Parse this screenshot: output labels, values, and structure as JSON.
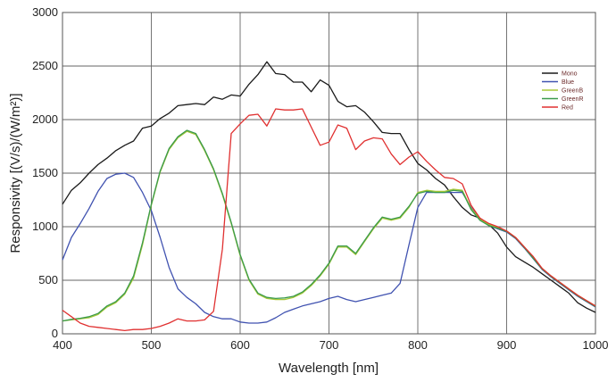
{
  "chart_data": {
    "type": "line",
    "xlabel": "Wavelength [nm]",
    "ylabel": "Responsivity [(V/s)/(W/m²)]",
    "xlim": [
      400,
      1000
    ],
    "ylim": [
      0,
      3000
    ],
    "x_ticks": [
      400,
      500,
      600,
      700,
      800,
      900,
      1000
    ],
    "y_ticks": [
      0,
      500,
      1000,
      1500,
      2000,
      2500,
      3000
    ],
    "grid": true,
    "legend_position": "top-right",
    "series": [
      {
        "name": "Mono",
        "color": "#1a1a1a",
        "points": [
          [
            400,
            1210
          ],
          [
            410,
            1340
          ],
          [
            420,
            1410
          ],
          [
            430,
            1500
          ],
          [
            440,
            1580
          ],
          [
            450,
            1640
          ],
          [
            460,
            1710
          ],
          [
            470,
            1760
          ],
          [
            480,
            1800
          ],
          [
            490,
            1920
          ],
          [
            500,
            1940
          ],
          [
            510,
            2010
          ],
          [
            520,
            2060
          ],
          [
            530,
            2130
          ],
          [
            540,
            2140
          ],
          [
            550,
            2150
          ],
          [
            560,
            2140
          ],
          [
            570,
            2210
          ],
          [
            580,
            2190
          ],
          [
            590,
            2230
          ],
          [
            600,
            2220
          ],
          [
            610,
            2330
          ],
          [
            620,
            2420
          ],
          [
            630,
            2540
          ],
          [
            640,
            2430
          ],
          [
            650,
            2420
          ],
          [
            660,
            2350
          ],
          [
            670,
            2350
          ],
          [
            680,
            2260
          ],
          [
            690,
            2370
          ],
          [
            700,
            2320
          ],
          [
            710,
            2170
          ],
          [
            720,
            2120
          ],
          [
            730,
            2130
          ],
          [
            740,
            2070
          ],
          [
            750,
            1980
          ],
          [
            760,
            1880
          ],
          [
            770,
            1870
          ],
          [
            780,
            1870
          ],
          [
            790,
            1720
          ],
          [
            800,
            1590
          ],
          [
            810,
            1530
          ],
          [
            820,
            1450
          ],
          [
            830,
            1390
          ],
          [
            840,
            1280
          ],
          [
            850,
            1180
          ],
          [
            860,
            1110
          ],
          [
            870,
            1080
          ],
          [
            880,
            1020
          ],
          [
            890,
            940
          ],
          [
            900,
            810
          ],
          [
            910,
            720
          ],
          [
            920,
            670
          ],
          [
            930,
            620
          ],
          [
            940,
            560
          ],
          [
            950,
            500
          ],
          [
            960,
            440
          ],
          [
            970,
            380
          ],
          [
            980,
            290
          ],
          [
            990,
            240
          ],
          [
            1000,
            200
          ]
        ]
      },
      {
        "name": "Blue",
        "color": "#4052b0",
        "points": [
          [
            400,
            690
          ],
          [
            410,
            900
          ],
          [
            420,
            1030
          ],
          [
            430,
            1170
          ],
          [
            440,
            1330
          ],
          [
            450,
            1450
          ],
          [
            460,
            1490
          ],
          [
            470,
            1500
          ],
          [
            480,
            1460
          ],
          [
            490,
            1320
          ],
          [
            500,
            1150
          ],
          [
            510,
            900
          ],
          [
            520,
            620
          ],
          [
            530,
            420
          ],
          [
            540,
            340
          ],
          [
            550,
            280
          ],
          [
            560,
            200
          ],
          [
            570,
            160
          ],
          [
            580,
            140
          ],
          [
            590,
            140
          ],
          [
            600,
            110
          ],
          [
            610,
            100
          ],
          [
            620,
            100
          ],
          [
            630,
            110
          ],
          [
            640,
            150
          ],
          [
            650,
            200
          ],
          [
            660,
            230
          ],
          [
            670,
            260
          ],
          [
            680,
            280
          ],
          [
            690,
            300
          ],
          [
            700,
            330
          ],
          [
            710,
            350
          ],
          [
            720,
            320
          ],
          [
            730,
            300
          ],
          [
            740,
            320
          ],
          [
            750,
            340
          ],
          [
            760,
            360
          ],
          [
            770,
            380
          ],
          [
            780,
            470
          ],
          [
            790,
            830
          ],
          [
            800,
            1180
          ],
          [
            810,
            1320
          ],
          [
            820,
            1320
          ],
          [
            830,
            1320
          ],
          [
            840,
            1320
          ],
          [
            850,
            1320
          ],
          [
            860,
            1180
          ],
          [
            870,
            1070
          ],
          [
            880,
            1010
          ],
          [
            890,
            980
          ],
          [
            900,
            950
          ],
          [
            910,
            890
          ],
          [
            920,
            800
          ],
          [
            930,
            700
          ],
          [
            940,
            600
          ],
          [
            950,
            530
          ],
          [
            960,
            470
          ],
          [
            970,
            410
          ],
          [
            980,
            350
          ],
          [
            990,
            300
          ],
          [
            1000,
            250
          ]
        ]
      },
      {
        "name": "GreenB",
        "color": "#a8c838",
        "points": [
          [
            400,
            120
          ],
          [
            410,
            130
          ],
          [
            420,
            140
          ],
          [
            430,
            150
          ],
          [
            440,
            180
          ],
          [
            450,
            250
          ],
          [
            460,
            290
          ],
          [
            470,
            370
          ],
          [
            480,
            520
          ],
          [
            490,
            830
          ],
          [
            500,
            1200
          ],
          [
            510,
            1510
          ],
          [
            520,
            1720
          ],
          [
            530,
            1830
          ],
          [
            540,
            1890
          ],
          [
            550,
            1860
          ],
          [
            560,
            1710
          ],
          [
            570,
            1530
          ],
          [
            580,
            1300
          ],
          [
            590,
            1030
          ],
          [
            600,
            730
          ],
          [
            610,
            500
          ],
          [
            620,
            370
          ],
          [
            630,
            330
          ],
          [
            640,
            320
          ],
          [
            650,
            320
          ],
          [
            660,
            340
          ],
          [
            670,
            380
          ],
          [
            680,
            450
          ],
          [
            690,
            540
          ],
          [
            700,
            650
          ],
          [
            710,
            810
          ],
          [
            720,
            810
          ],
          [
            730,
            740
          ],
          [
            740,
            860
          ],
          [
            750,
            980
          ],
          [
            760,
            1080
          ],
          [
            770,
            1060
          ],
          [
            780,
            1080
          ],
          [
            790,
            1180
          ],
          [
            800,
            1320
          ],
          [
            810,
            1340
          ],
          [
            820,
            1330
          ],
          [
            830,
            1330
          ],
          [
            840,
            1350
          ],
          [
            850,
            1340
          ],
          [
            860,
            1170
          ],
          [
            870,
            1070
          ],
          [
            880,
            1020
          ],
          [
            890,
            990
          ],
          [
            900,
            960
          ],
          [
            910,
            900
          ],
          [
            920,
            810
          ],
          [
            930,
            710
          ],
          [
            940,
            610
          ],
          [
            950,
            540
          ],
          [
            960,
            480
          ],
          [
            970,
            420
          ],
          [
            980,
            360
          ],
          [
            990,
            310
          ],
          [
            1000,
            260
          ]
        ]
      },
      {
        "name": "GreenR",
        "color": "#3a9a4a",
        "points": [
          [
            400,
            120
          ],
          [
            410,
            135
          ],
          [
            420,
            145
          ],
          [
            430,
            160
          ],
          [
            440,
            190
          ],
          [
            450,
            260
          ],
          [
            460,
            300
          ],
          [
            470,
            380
          ],
          [
            480,
            540
          ],
          [
            490,
            850
          ],
          [
            500,
            1210
          ],
          [
            510,
            1520
          ],
          [
            520,
            1730
          ],
          [
            530,
            1840
          ],
          [
            540,
            1900
          ],
          [
            550,
            1870
          ],
          [
            560,
            1720
          ],
          [
            570,
            1540
          ],
          [
            580,
            1310
          ],
          [
            590,
            1040
          ],
          [
            600,
            740
          ],
          [
            610,
            510
          ],
          [
            620,
            380
          ],
          [
            630,
            340
          ],
          [
            640,
            330
          ],
          [
            650,
            335
          ],
          [
            660,
            350
          ],
          [
            670,
            390
          ],
          [
            680,
            460
          ],
          [
            690,
            550
          ],
          [
            700,
            660
          ],
          [
            710,
            820
          ],
          [
            720,
            820
          ],
          [
            730,
            750
          ],
          [
            740,
            870
          ],
          [
            750,
            990
          ],
          [
            760,
            1090
          ],
          [
            770,
            1070
          ],
          [
            780,
            1090
          ],
          [
            790,
            1190
          ],
          [
            800,
            1310
          ],
          [
            810,
            1330
          ],
          [
            820,
            1320
          ],
          [
            830,
            1320
          ],
          [
            840,
            1340
          ],
          [
            850,
            1330
          ],
          [
            860,
            1160
          ],
          [
            870,
            1060
          ],
          [
            880,
            1010
          ],
          [
            890,
            985
          ],
          [
            900,
            955
          ],
          [
            910,
            895
          ],
          [
            920,
            805
          ],
          [
            930,
            705
          ],
          [
            940,
            605
          ],
          [
            950,
            535
          ],
          [
            960,
            475
          ],
          [
            970,
            415
          ],
          [
            980,
            355
          ],
          [
            990,
            305
          ],
          [
            1000,
            255
          ]
        ]
      },
      {
        "name": "Red",
        "color": "#e03030",
        "points": [
          [
            400,
            220
          ],
          [
            410,
            160
          ],
          [
            420,
            100
          ],
          [
            430,
            70
          ],
          [
            440,
            60
          ],
          [
            450,
            50
          ],
          [
            460,
            40
          ],
          [
            470,
            30
          ],
          [
            480,
            40
          ],
          [
            490,
            40
          ],
          [
            500,
            50
          ],
          [
            510,
            70
          ],
          [
            520,
            100
          ],
          [
            530,
            140
          ],
          [
            540,
            120
          ],
          [
            550,
            120
          ],
          [
            560,
            130
          ],
          [
            570,
            210
          ],
          [
            580,
            790
          ],
          [
            590,
            1870
          ],
          [
            600,
            1960
          ],
          [
            610,
            2040
          ],
          [
            620,
            2050
          ],
          [
            630,
            1940
          ],
          [
            640,
            2100
          ],
          [
            650,
            2090
          ],
          [
            660,
            2090
          ],
          [
            670,
            2100
          ],
          [
            680,
            1930
          ],
          [
            690,
            1760
          ],
          [
            700,
            1790
          ],
          [
            710,
            1950
          ],
          [
            720,
            1920
          ],
          [
            730,
            1720
          ],
          [
            740,
            1800
          ],
          [
            750,
            1830
          ],
          [
            760,
            1820
          ],
          [
            770,
            1680
          ],
          [
            780,
            1580
          ],
          [
            790,
            1650
          ],
          [
            800,
            1700
          ],
          [
            810,
            1610
          ],
          [
            820,
            1530
          ],
          [
            830,
            1460
          ],
          [
            840,
            1450
          ],
          [
            850,
            1400
          ],
          [
            860,
            1200
          ],
          [
            870,
            1080
          ],
          [
            880,
            1030
          ],
          [
            890,
            1000
          ],
          [
            900,
            960
          ],
          [
            910,
            900
          ],
          [
            920,
            810
          ],
          [
            930,
            720
          ],
          [
            940,
            610
          ],
          [
            950,
            540
          ],
          [
            960,
            480
          ],
          [
            970,
            420
          ],
          [
            980,
            360
          ],
          [
            990,
            310
          ],
          [
            1000,
            260
          ]
        ]
      }
    ]
  }
}
